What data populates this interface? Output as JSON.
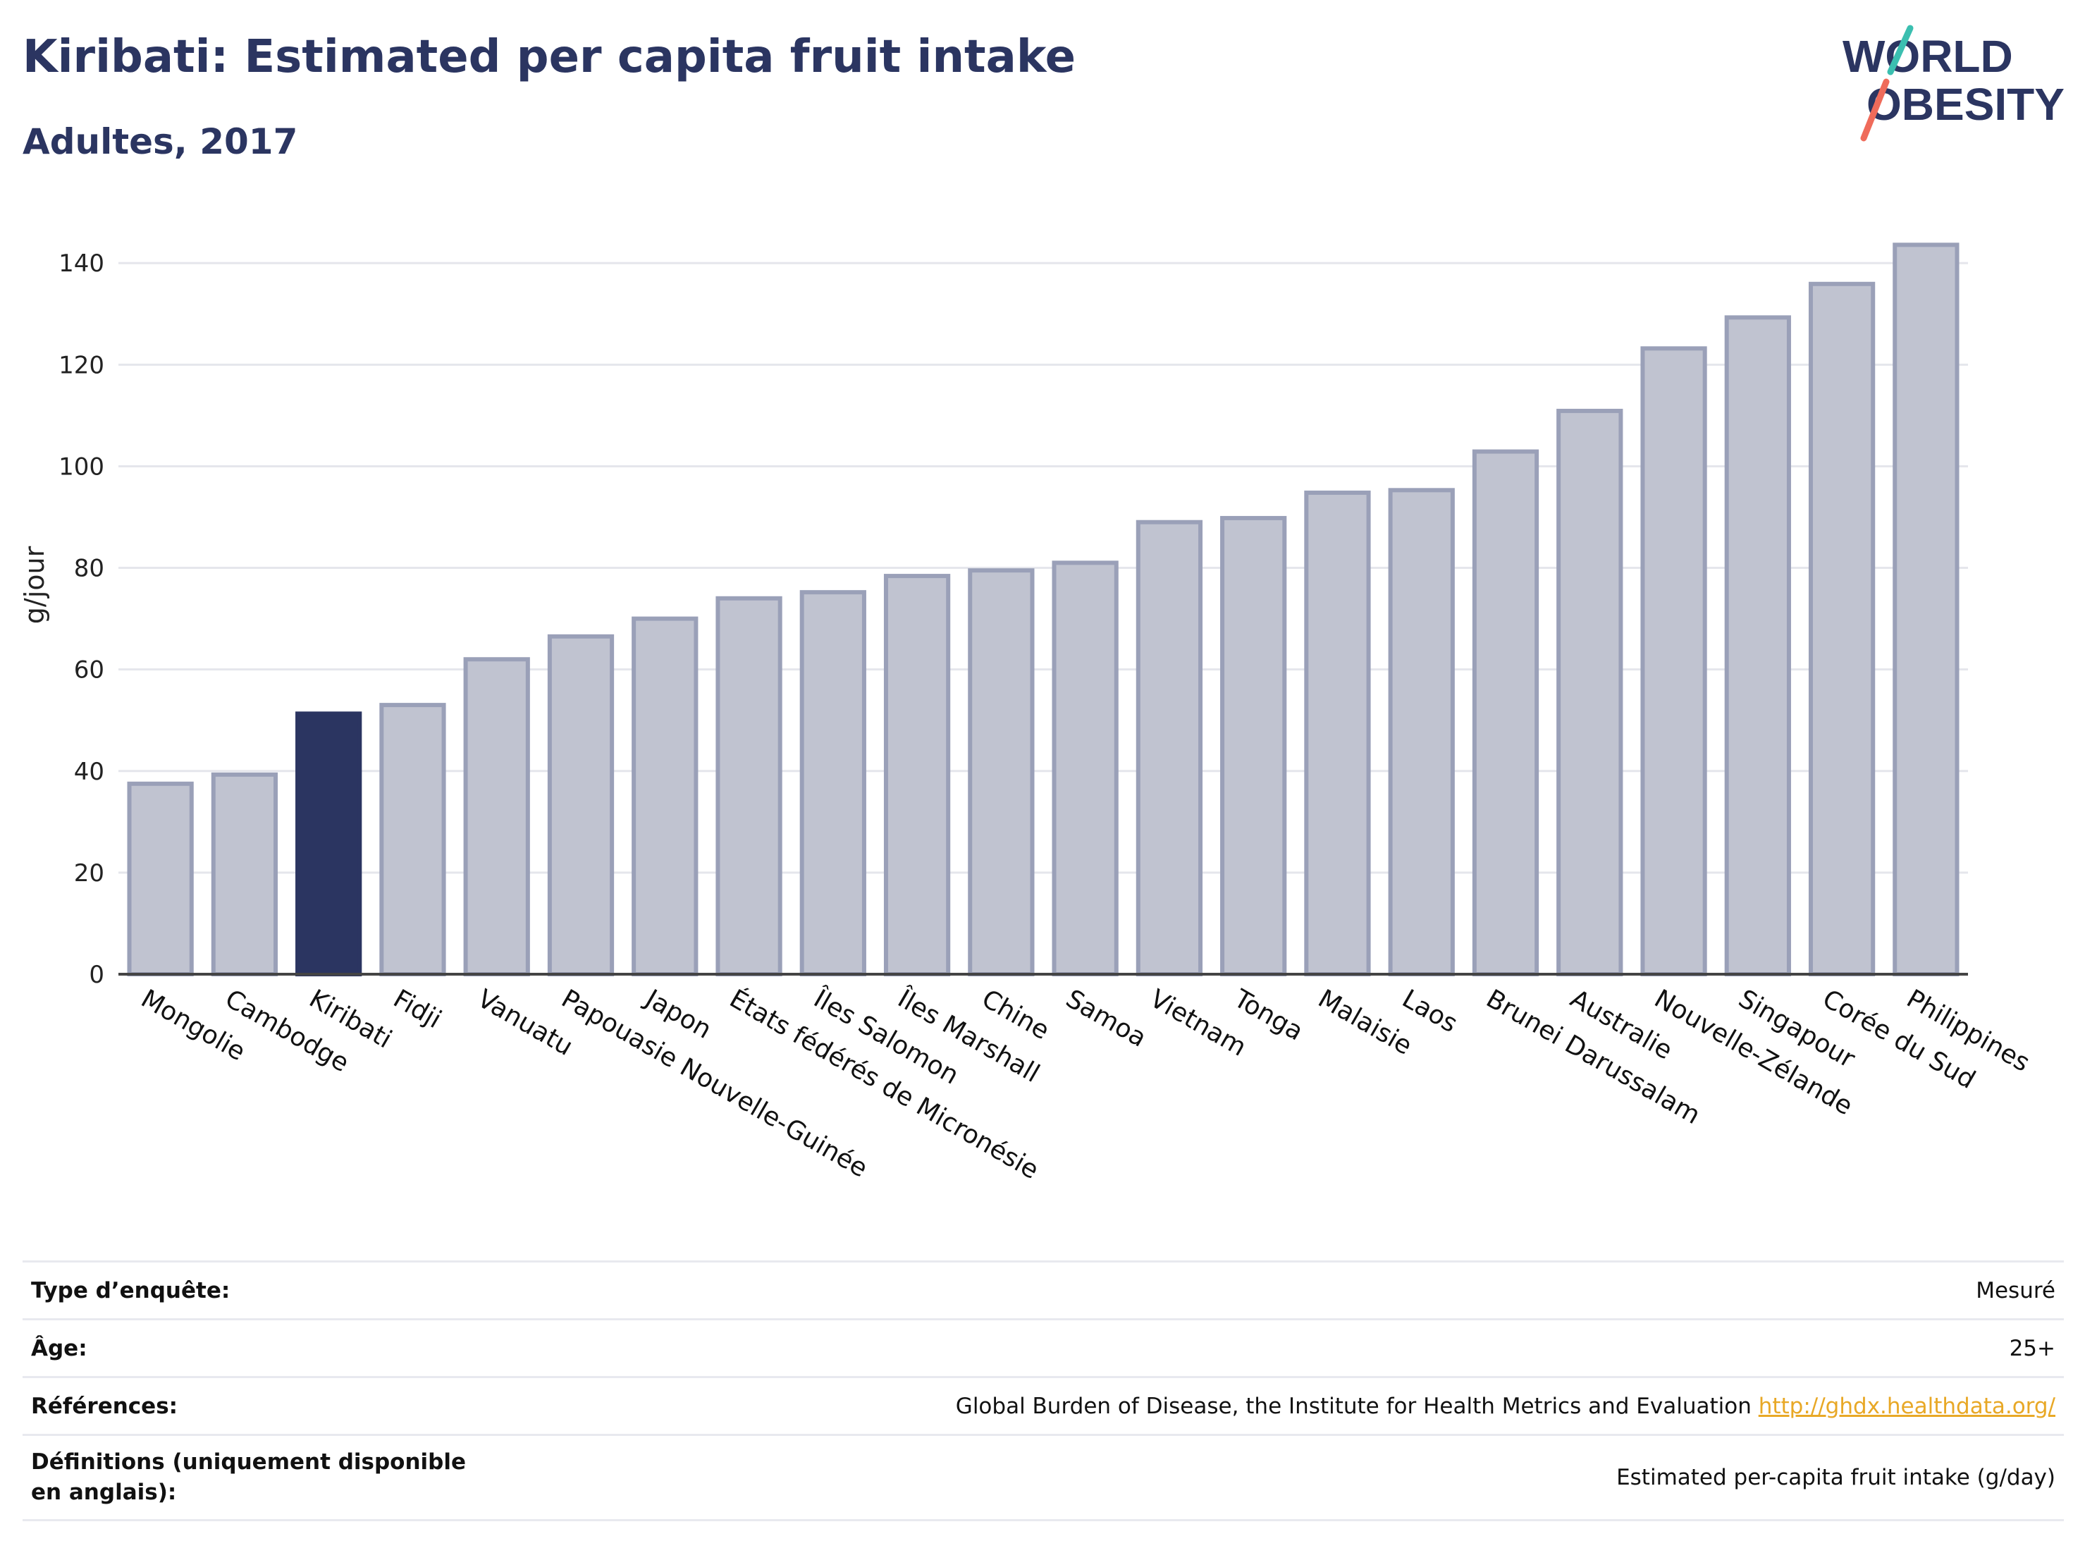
{
  "header": {
    "title": "Kiribati: Estimated per capita fruit intake",
    "subtitle": "Adultes, 2017",
    "logo_line1": "WORLD",
    "logo_line2": "OBESITY"
  },
  "chart_data": {
    "type": "bar",
    "ylabel": "g/jour",
    "ylim": [
      0,
      146
    ],
    "yticks": [
      0,
      20,
      40,
      60,
      80,
      100,
      120,
      140
    ],
    "grid": true,
    "highlight": "Kiribati",
    "colors": {
      "bar": "#c0c3d0",
      "bar_border": "#9aa0b8",
      "highlight": "#2b3561",
      "grid": "#e5e6ec"
    },
    "categories": [
      "Mongolie",
      "Cambodge",
      "Kiribati",
      "Fidji",
      "Vanuatu",
      "Papouasie Nouvelle-Guinée",
      "Japon",
      "États fédérés de Micronésie",
      "Îles Salomon",
      "Îles Marshall",
      "Chine",
      "Samoa",
      "Vietnam",
      "Tonga",
      "Malaisie",
      "Laos",
      "Brunei Darussalam",
      "Australie",
      "Nouvelle-Zélande",
      "Singapour",
      "Corée du Sud",
      "Philippines"
    ],
    "values": [
      37.5,
      39.3,
      51.3,
      53,
      62,
      66.5,
      70,
      74,
      75.2,
      78.4,
      79.5,
      81,
      89,
      89.8,
      94.8,
      95.3,
      102.9,
      110.9,
      123.2,
      129.3,
      135.9,
      143.6
    ]
  },
  "info_table": [
    {
      "label": "Type d’enquête:",
      "value": "Mesuré",
      "link": ""
    },
    {
      "label": "Âge:",
      "value": "25+",
      "link": ""
    },
    {
      "label": "Références:",
      "value": "Global Burden of Disease, the Institute for Health Metrics and Evaluation",
      "link": "http://ghdx.healthdata.org/"
    },
    {
      "label": "Définitions (uniquement disponible en anglais):",
      "value": "Estimated per-capita fruit intake (g/day)",
      "link": ""
    }
  ]
}
